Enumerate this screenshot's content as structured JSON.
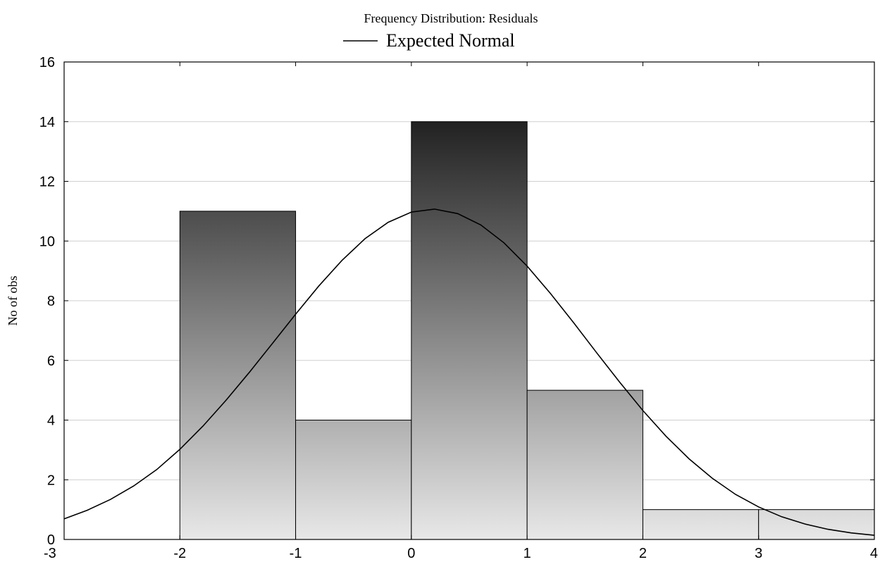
{
  "chart_data": {
    "type": "bar",
    "title": "Frequency Distribution: Residuals",
    "legend": {
      "entries": [
        "Expected Normal"
      ],
      "placement": "top-center"
    },
    "ylabel": "No of obs",
    "xlabel": "",
    "xlim": [
      -3,
      4
    ],
    "ylim": [
      0,
      16
    ],
    "x_ticks": [
      -3,
      -2,
      -1,
      0,
      1,
      2,
      3,
      4
    ],
    "y_ticks": [
      0,
      2,
      4,
      6,
      8,
      10,
      12,
      14,
      16
    ],
    "grid": "horizontal",
    "bins": [
      {
        "from": -2,
        "to": -1,
        "count": 11
      },
      {
        "from": -1,
        "to": 0,
        "count": 4
      },
      {
        "from": 0,
        "to": 1,
        "count": 14
      },
      {
        "from": 1,
        "to": 2,
        "count": 5
      },
      {
        "from": 2,
        "to": 3,
        "count": 1
      },
      {
        "from": 3,
        "to": 4,
        "count": 1
      }
    ],
    "expected_normal": {
      "name": "Expected Normal",
      "x": [
        -3,
        -2.8,
        -2.6,
        -2.4,
        -2.2,
        -2,
        -1.8,
        -1.6,
        -1.4,
        -1.2,
        -1,
        -0.8,
        -0.6,
        -0.4,
        -0.2,
        0,
        0.2,
        0.4,
        0.6,
        0.8,
        1,
        1.2,
        1.4,
        1.6,
        1.8,
        2,
        2.2,
        2.4,
        2.6,
        2.8,
        3,
        3.2,
        3.4,
        3.6,
        3.8,
        4
      ],
      "y": [
        0.69,
        0.98,
        1.34,
        1.79,
        2.34,
        3.02,
        3.8,
        4.67,
        5.6,
        6.57,
        7.55,
        8.49,
        9.35,
        10.08,
        10.63,
        10.97,
        11.07,
        10.92,
        10.54,
        9.94,
        9.16,
        8.25,
        7.27,
        6.26,
        5.27,
        4.32,
        3.46,
        2.7,
        2.05,
        1.51,
        1.09,
        0.76,
        0.52,
        0.34,
        0.22,
        0.14
      ]
    },
    "colors": {
      "bar_top": "#222222",
      "bar_bottom": "#e8e8e8",
      "curve": "#000000"
    }
  }
}
